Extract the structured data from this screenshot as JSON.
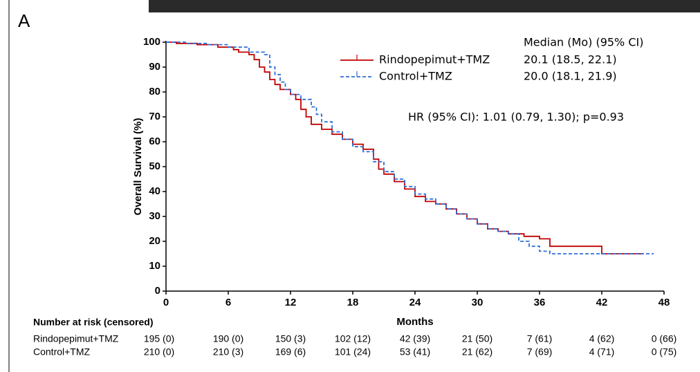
{
  "chart_data": {
    "type": "step",
    "panel": "A",
    "y_label": "Overall Survival (%)",
    "x_label": "Months",
    "legend_header": "Median (Mo) (95% CI)",
    "annotation": "HR (95% CI):  1.01 (0.79, 1.30); p=0.93",
    "xlim": [
      0,
      48
    ],
    "ylim": [
      0,
      100
    ],
    "xticks": [
      0,
      6,
      12,
      18,
      24,
      30,
      36,
      42,
      48
    ],
    "yticks": [
      0,
      10,
      20,
      30,
      40,
      50,
      60,
      70,
      80,
      90,
      100
    ],
    "series": [
      {
        "name": "Rindopepimut+TMZ",
        "median_label": "20.1 (18.5, 22.1)",
        "color": "#c00000",
        "line_style": "solid",
        "x": [
          0,
          1,
          3,
          5,
          6.5,
          7,
          8,
          8.5,
          9,
          9.5,
          10,
          10.5,
          11,
          12,
          12.5,
          13,
          13.5,
          14,
          15,
          16,
          17,
          18,
          19,
          20,
          20.5,
          21,
          22,
          23,
          24,
          25,
          26,
          27,
          28,
          29,
          30,
          31,
          32,
          33,
          34.5,
          36,
          37,
          42,
          46
        ],
        "values": [
          100,
          99.5,
          99,
          98,
          97,
          96,
          95,
          93,
          90,
          88,
          85,
          83,
          81,
          79,
          77,
          73,
          70,
          67,
          65,
          63,
          61,
          59,
          57,
          53,
          49,
          47,
          44,
          41,
          38,
          36,
          35,
          33,
          31,
          29,
          27,
          25,
          24,
          23,
          22,
          21,
          18,
          15,
          15
        ]
      },
      {
        "name": "Control+TMZ",
        "median_label": "20.0 (18.1, 21.9)",
        "color": "#2e6fd8",
        "line_style": "dashed",
        "x": [
          0,
          2,
          4,
          6,
          8,
          9.5,
          10,
          10.5,
          11,
          11.5,
          12,
          13,
          14,
          14.5,
          15,
          16,
          17,
          18,
          19,
          20,
          21,
          22,
          23,
          24,
          25,
          26,
          27,
          28,
          29,
          30,
          31,
          32,
          33,
          34,
          35,
          36,
          37,
          47
        ],
        "values": [
          100,
          99.5,
          99,
          98,
          96,
          95,
          90,
          87,
          84,
          81,
          79,
          77,
          74,
          71,
          68,
          64,
          61,
          58,
          56,
          52,
          48,
          45,
          42,
          39,
          37,
          35,
          33,
          31,
          29,
          27,
          25,
          24,
          23,
          20,
          18,
          16,
          15,
          15
        ]
      }
    ],
    "risk_table": {
      "title": "Number at risk (censored)",
      "rows": [
        {
          "name": "Rindopepimut+TMZ",
          "values": [
            "195 (0)",
            "190 (0)",
            "150 (3)",
            "102 (12)",
            "42 (39)",
            "21 (50)",
            "7 (61)",
            "4 (62)",
            "0 (66)"
          ]
        },
        {
          "name": "Control+TMZ",
          "values": [
            "210 (0)",
            "210 (3)",
            "169 (6)",
            "101 (24)",
            "53 (41)",
            "21 (62)",
            "7 (69)",
            "4 (71)",
            "0 (75)"
          ]
        }
      ]
    }
  }
}
